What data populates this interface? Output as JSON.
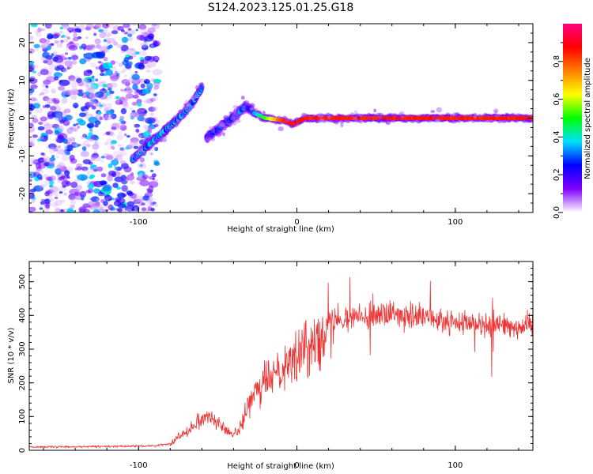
{
  "title": "S124.2023.125.01.25.G18",
  "chart_data": [
    {
      "type": "heatmap",
      "xlabel": "Height of straight line (km)",
      "ylabel": "Frequency (Hz)",
      "xlim": [
        -169,
        149
      ],
      "ylim": [
        -25,
        25
      ],
      "xticks": [
        -100,
        0,
        100
      ],
      "yticks": [
        -20,
        -10,
        0,
        10,
        20
      ],
      "colorbar": {
        "label": "Normalized spectral amplitude",
        "range": [
          0,
          1
        ],
        "ticks": [
          0.0,
          0.2,
          0.4,
          0.6,
          0.8
        ],
        "colors": [
          "#ffffff",
          "#8000ff",
          "#0000ff",
          "#00e0ff",
          "#00ff00",
          "#ffff00",
          "#ff8000",
          "#ff0000",
          "#ff0080"
        ]
      },
      "tracks": [
        {
          "name": "",
          "x": [
            -104,
            -96,
            -88,
            -80,
            -72,
            -66,
            -60
          ],
          "freq": [
            -11,
            -8,
            -5,
            -2,
            1,
            4,
            8
          ],
          "amplitude": 0.35
        },
        {
          "name": "",
          "x": [
            -57,
            -50,
            -44,
            -38,
            -33,
            -28
          ],
          "freq": [
            -5,
            -3,
            -1,
            1,
            3,
            2
          ],
          "amplitude": 0.3
        },
        {
          "name": "",
          "x": [
            -28,
            -20,
            -10,
            -2,
            5,
            20,
            60,
            100,
            149
          ],
          "freq": [
            1.5,
            0,
            -0.5,
            -1.5,
            0,
            0,
            0,
            0,
            0
          ],
          "amplitude": 0.85
        }
      ]
    },
    {
      "type": "line",
      "xlabel": "Height of straight line (km)",
      "ylabel": "SNR (10 * v/v)",
      "xlim": [
        -169,
        149
      ],
      "ylim": [
        0,
        560
      ],
      "xticks": [
        -100,
        0,
        100
      ],
      "yticks": [
        0,
        100,
        200,
        300,
        400,
        500
      ],
      "color": "#ee3333",
      "series": [
        {
          "name": "",
          "x": [
            -169,
            -150,
            -130,
            -110,
            -90,
            -80,
            -75,
            -70,
            -65,
            -60,
            -55,
            -50,
            -45,
            -40,
            -35,
            -30,
            -25,
            -20,
            -15,
            -10,
            -5,
            0,
            5,
            10,
            15,
            20,
            30,
            40,
            50,
            60,
            70,
            80,
            90,
            100,
            110,
            120,
            130,
            140,
            149
          ],
          "values": [
            10,
            10,
            11,
            12,
            13,
            20,
            40,
            55,
            75,
            95,
            105,
            80,
            60,
            45,
            75,
            140,
            175,
            200,
            230,
            250,
            265,
            275,
            295,
            320,
            355,
            385,
            395,
            398,
            400,
            400,
            395,
            392,
            385,
            380,
            375,
            373,
            372,
            370,
            370
          ]
        }
      ]
    }
  ]
}
